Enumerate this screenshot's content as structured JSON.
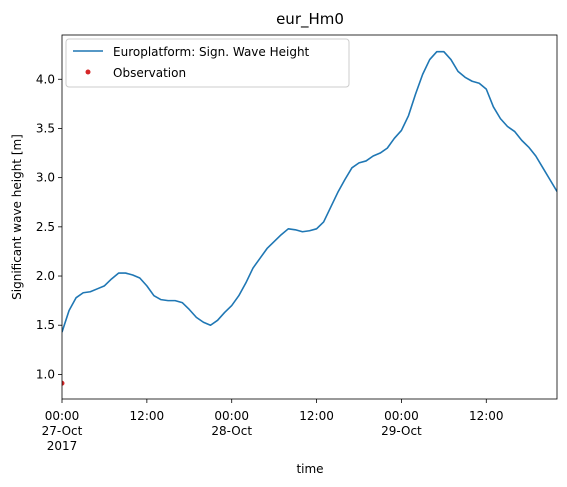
{
  "chart_data": {
    "type": "line",
    "title": "eur_Hm0",
    "xlabel": "time",
    "ylabel": "Significant wave height [m]",
    "x_range": [
      "2017-10-27 00:00",
      "2017-10-29 22:00"
    ],
    "ylim": [
      0.75,
      4.45
    ],
    "grid": false,
    "legend_position": "top-left",
    "y_ticks": [
      1.0,
      1.5,
      2.0,
      2.5,
      3.0,
      3.5,
      4.0
    ],
    "y_tick_labels": [
      "1.0",
      "1.5",
      "2.0",
      "2.5",
      "3.0",
      "3.5",
      "4.0"
    ],
    "x_ticks": [
      {
        "time": "2017-10-27 00:00",
        "lines": [
          "00:00",
          "27-Oct",
          "2017"
        ]
      },
      {
        "time": "2017-10-27 12:00",
        "lines": [
          "12:00"
        ]
      },
      {
        "time": "2017-10-28 00:00",
        "lines": [
          "00:00",
          "28-Oct"
        ]
      },
      {
        "time": "2017-10-28 12:00",
        "lines": [
          "12:00"
        ]
      },
      {
        "time": "2017-10-29 00:00",
        "lines": [
          "00:00",
          "29-Oct"
        ]
      },
      {
        "time": "2017-10-29 12:00",
        "lines": [
          "12:00"
        ]
      }
    ],
    "series": [
      {
        "name": "Europlatform: Sign. Wave Height",
        "kind": "line",
        "color": "#1f77b4",
        "points": [
          [
            "2017-10-27 00:00",
            1.43
          ],
          [
            "2017-10-27 01:00",
            1.65
          ],
          [
            "2017-10-27 02:00",
            1.78
          ],
          [
            "2017-10-27 03:00",
            1.83
          ],
          [
            "2017-10-27 04:00",
            1.84
          ],
          [
            "2017-10-27 05:00",
            1.87
          ],
          [
            "2017-10-27 06:00",
            1.9
          ],
          [
            "2017-10-27 07:00",
            1.97
          ],
          [
            "2017-10-27 08:00",
            2.03
          ],
          [
            "2017-10-27 09:00",
            2.03
          ],
          [
            "2017-10-27 10:00",
            2.01
          ],
          [
            "2017-10-27 11:00",
            1.98
          ],
          [
            "2017-10-27 12:00",
            1.9
          ],
          [
            "2017-10-27 13:00",
            1.8
          ],
          [
            "2017-10-27 14:00",
            1.76
          ],
          [
            "2017-10-27 15:00",
            1.75
          ],
          [
            "2017-10-27 16:00",
            1.75
          ],
          [
            "2017-10-27 17:00",
            1.73
          ],
          [
            "2017-10-27 18:00",
            1.66
          ],
          [
            "2017-10-27 19:00",
            1.58
          ],
          [
            "2017-10-27 20:00",
            1.53
          ],
          [
            "2017-10-27 21:00",
            1.5
          ],
          [
            "2017-10-27 22:00",
            1.55
          ],
          [
            "2017-10-27 23:00",
            1.63
          ],
          [
            "2017-10-28 00:00",
            1.7
          ],
          [
            "2017-10-28 01:00",
            1.8
          ],
          [
            "2017-10-28 02:00",
            1.93
          ],
          [
            "2017-10-28 03:00",
            2.08
          ],
          [
            "2017-10-28 04:00",
            2.18
          ],
          [
            "2017-10-28 05:00",
            2.28
          ],
          [
            "2017-10-28 06:00",
            2.35
          ],
          [
            "2017-10-28 07:00",
            2.42
          ],
          [
            "2017-10-28 08:00",
            2.48
          ],
          [
            "2017-10-28 09:00",
            2.47
          ],
          [
            "2017-10-28 10:00",
            2.45
          ],
          [
            "2017-10-28 11:00",
            2.46
          ],
          [
            "2017-10-28 12:00",
            2.48
          ],
          [
            "2017-10-28 13:00",
            2.55
          ],
          [
            "2017-10-28 14:00",
            2.7
          ],
          [
            "2017-10-28 15:00",
            2.85
          ],
          [
            "2017-10-28 16:00",
            2.98
          ],
          [
            "2017-10-28 17:00",
            3.1
          ],
          [
            "2017-10-28 18:00",
            3.15
          ],
          [
            "2017-10-28 19:00",
            3.17
          ],
          [
            "2017-10-28 20:00",
            3.22
          ],
          [
            "2017-10-28 21:00",
            3.25
          ],
          [
            "2017-10-28 22:00",
            3.3
          ],
          [
            "2017-10-28 23:00",
            3.4
          ],
          [
            "2017-10-29 00:00",
            3.48
          ],
          [
            "2017-10-29 01:00",
            3.63
          ],
          [
            "2017-10-29 02:00",
            3.85
          ],
          [
            "2017-10-29 03:00",
            4.05
          ],
          [
            "2017-10-29 04:00",
            4.2
          ],
          [
            "2017-10-29 05:00",
            4.28
          ],
          [
            "2017-10-29 06:00",
            4.28
          ],
          [
            "2017-10-29 07:00",
            4.2
          ],
          [
            "2017-10-29 08:00",
            4.08
          ],
          [
            "2017-10-29 09:00",
            4.02
          ],
          [
            "2017-10-29 10:00",
            3.98
          ],
          [
            "2017-10-29 11:00",
            3.96
          ],
          [
            "2017-10-29 12:00",
            3.9
          ],
          [
            "2017-10-29 13:00",
            3.72
          ],
          [
            "2017-10-29 14:00",
            3.6
          ],
          [
            "2017-10-29 15:00",
            3.52
          ],
          [
            "2017-10-29 16:00",
            3.47
          ],
          [
            "2017-10-29 17:00",
            3.38
          ],
          [
            "2017-10-29 18:00",
            3.31
          ],
          [
            "2017-10-29 19:00",
            3.22
          ],
          [
            "2017-10-29 20:00",
            3.1
          ],
          [
            "2017-10-29 21:00",
            2.98
          ],
          [
            "2017-10-29 22:00",
            2.86
          ]
        ]
      },
      {
        "name": "Observation",
        "kind": "scatter",
        "color": "#d62728",
        "points": [
          [
            "2017-10-27 00:00",
            0.91
          ]
        ]
      }
    ]
  }
}
